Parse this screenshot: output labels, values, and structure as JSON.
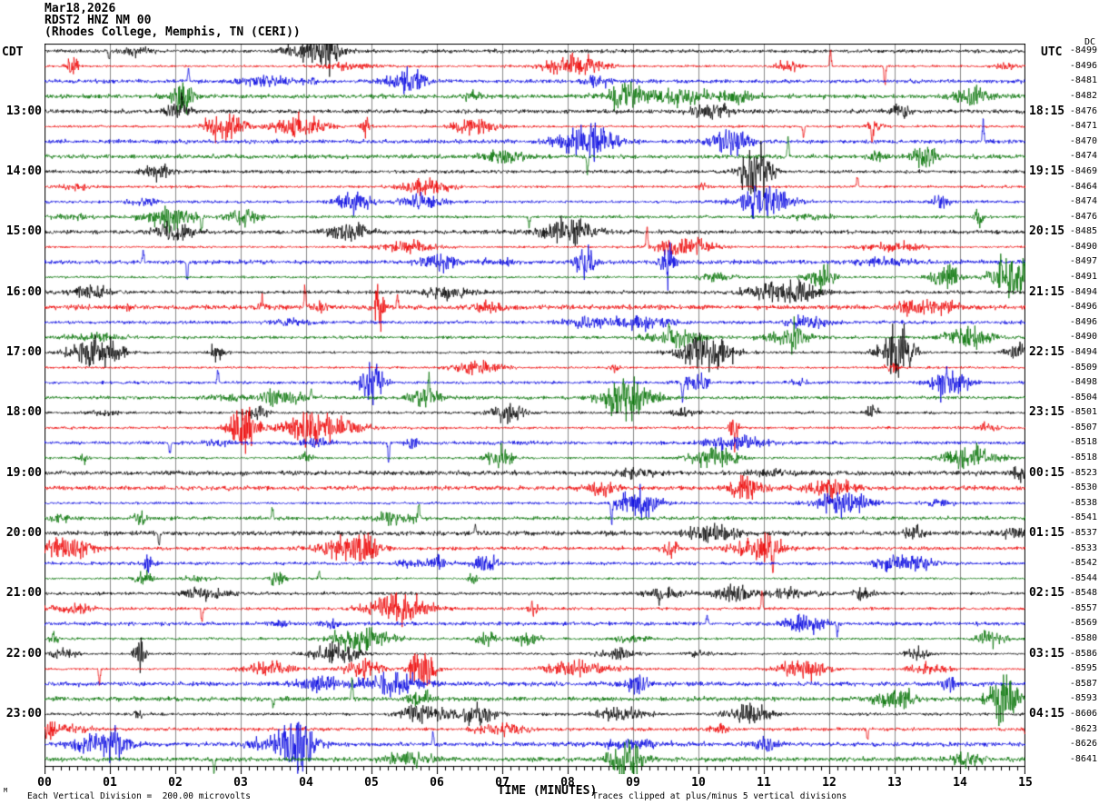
{
  "header": {
    "date": "Mar18,2026",
    "station": "RDST2 HNZ NM 00",
    "location": "(Rhodes College, Memphis, TN (CERI))"
  },
  "axes": {
    "left_label": "CDT",
    "right_label": "UTC",
    "dc_header": "DC",
    "x_title": "TIME (MINUTES)",
    "x_ticks": [
      "00",
      "01",
      "02",
      "03",
      "04",
      "05",
      "06",
      "07",
      "08",
      "09",
      "10",
      "11",
      "12",
      "13",
      "14",
      "15"
    ]
  },
  "footer": {
    "scale_note": "Each Vertical Division =  200.00 microvolts",
    "clip_note": "Traces clipped at plus/minus 5 vertical divisions",
    "corner_mark": "M"
  },
  "chart_data": {
    "type": "line",
    "subtype": "helicorder-seismogram",
    "title": "RDST2 HNZ NM 00 (Rhodes College, Memphis, TN (CERI)) Mar18,2026",
    "xlabel": "TIME (MINUTES)",
    "x_range_minutes": [
      0,
      15
    ],
    "minutes_per_row": 15,
    "rows_count": 48,
    "microvolts_per_division": 200.0,
    "clip_divisions": 5,
    "grid": "vertical-minute-lines",
    "grid_color": "#8a8a8a",
    "trace_color_cycle": [
      "#000000",
      "#ee0000",
      "#0000e0",
      "#007000"
    ],
    "noise_seed": 20260318,
    "rows": [
      {
        "cdt": "",
        "utc": "",
        "dc": -8499
      },
      {
        "cdt": "",
        "utc": "",
        "dc": -8496
      },
      {
        "cdt": "",
        "utc": "",
        "dc": -8481
      },
      {
        "cdt": "",
        "utc": "",
        "dc": -8482
      },
      {
        "cdt": "13:00",
        "utc": "18:15",
        "dc": -8476
      },
      {
        "cdt": "",
        "utc": "",
        "dc": -8471
      },
      {
        "cdt": "",
        "utc": "",
        "dc": -8470
      },
      {
        "cdt": "",
        "utc": "",
        "dc": -8474
      },
      {
        "cdt": "14:00",
        "utc": "19:15",
        "dc": -8469
      },
      {
        "cdt": "",
        "utc": "",
        "dc": -8464
      },
      {
        "cdt": "",
        "utc": "",
        "dc": -8474
      },
      {
        "cdt": "",
        "utc": "",
        "dc": -8476
      },
      {
        "cdt": "15:00",
        "utc": "20:15",
        "dc": -8485
      },
      {
        "cdt": "",
        "utc": "",
        "dc": -8490
      },
      {
        "cdt": "",
        "utc": "",
        "dc": -8497
      },
      {
        "cdt": "",
        "utc": "",
        "dc": -8491
      },
      {
        "cdt": "16:00",
        "utc": "21:15",
        "dc": -8494
      },
      {
        "cdt": "",
        "utc": "",
        "dc": -8496
      },
      {
        "cdt": "",
        "utc": "",
        "dc": -8496
      },
      {
        "cdt": "",
        "utc": "",
        "dc": -8490
      },
      {
        "cdt": "17:00",
        "utc": "22:15",
        "dc": -8494
      },
      {
        "cdt": "",
        "utc": "",
        "dc": -8509
      },
      {
        "cdt": "",
        "utc": "",
        "dc": -8498
      },
      {
        "cdt": "",
        "utc": "",
        "dc": -8504
      },
      {
        "cdt": "18:00",
        "utc": "23:15",
        "dc": -8501
      },
      {
        "cdt": "",
        "utc": "",
        "dc": -8507
      },
      {
        "cdt": "",
        "utc": "",
        "dc": -8518
      },
      {
        "cdt": "",
        "utc": "",
        "dc": -8518
      },
      {
        "cdt": "19:00",
        "utc": "00:15",
        "dc": -8523
      },
      {
        "cdt": "",
        "utc": "",
        "dc": -8530
      },
      {
        "cdt": "",
        "utc": "",
        "dc": -8538
      },
      {
        "cdt": "",
        "utc": "",
        "dc": -8541
      },
      {
        "cdt": "20:00",
        "utc": "01:15",
        "dc": -8537
      },
      {
        "cdt": "",
        "utc": "",
        "dc": -8533
      },
      {
        "cdt": "",
        "utc": "",
        "dc": -8542
      },
      {
        "cdt": "",
        "utc": "",
        "dc": -8544
      },
      {
        "cdt": "21:00",
        "utc": "02:15",
        "dc": -8548
      },
      {
        "cdt": "",
        "utc": "",
        "dc": -8557
      },
      {
        "cdt": "",
        "utc": "",
        "dc": -8569
      },
      {
        "cdt": "",
        "utc": "",
        "dc": -8580
      },
      {
        "cdt": "22:00",
        "utc": "03:15",
        "dc": -8586
      },
      {
        "cdt": "",
        "utc": "",
        "dc": -8595
      },
      {
        "cdt": "",
        "utc": "",
        "dc": -8587
      },
      {
        "cdt": "",
        "utc": "",
        "dc": -8593
      },
      {
        "cdt": "23:00",
        "utc": "04:15",
        "dc": -8606
      },
      {
        "cdt": "",
        "utc": "",
        "dc": -8623
      },
      {
        "cdt": "",
        "utc": "",
        "dc": -8626
      },
      {
        "cdt": "",
        "utc": "",
        "dc": -8641
      }
    ]
  }
}
